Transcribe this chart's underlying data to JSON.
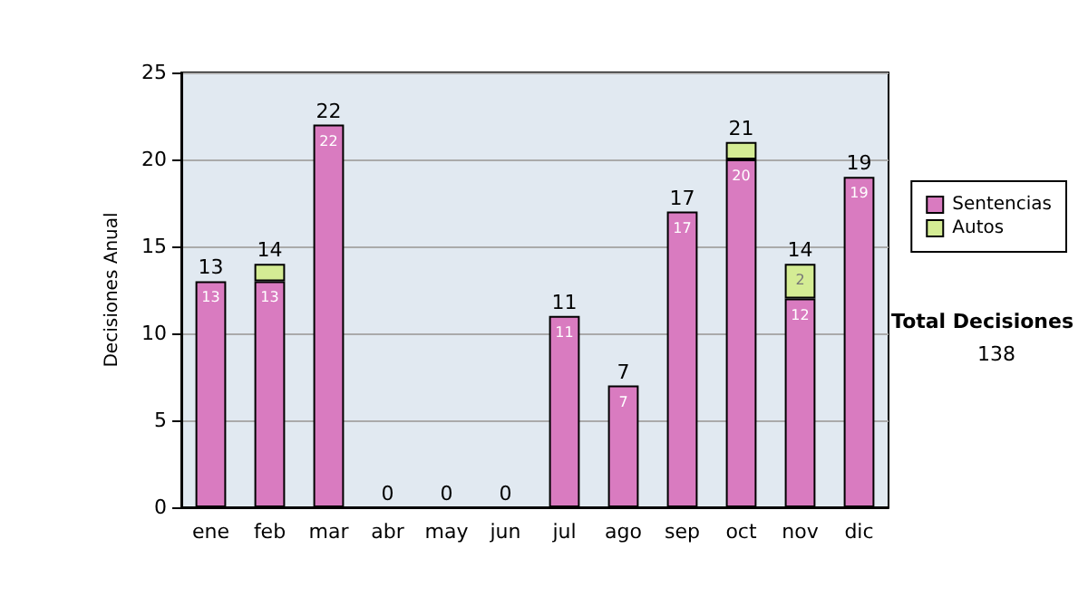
{
  "chart_data": {
    "type": "bar",
    "ylabel": "Decisiones Anual",
    "categories": [
      "ene",
      "feb",
      "mar",
      "abr",
      "may",
      "jun",
      "jul",
      "ago",
      "sep",
      "oct",
      "nov",
      "dic"
    ],
    "series": [
      {
        "name": "Sentencias",
        "color": "#d97bc0",
        "values": [
          13,
          13,
          22,
          0,
          0,
          0,
          11,
          7,
          17,
          20,
          12,
          19
        ],
        "value_labels": [
          "13",
          "13",
          "22",
          null,
          null,
          null,
          "11",
          "7",
          "17",
          "20",
          "12",
          "19"
        ]
      },
      {
        "name": "Autos",
        "color": "#d4ec94",
        "values": [
          0,
          1,
          0,
          0,
          0,
          0,
          0,
          0,
          0,
          1,
          2,
          0
        ],
        "value_labels": [
          null,
          null,
          null,
          null,
          null,
          null,
          null,
          null,
          null,
          null,
          "2",
          null
        ]
      }
    ],
    "stacked": true,
    "totals": [
      "13",
      "14",
      "22",
      "0",
      "0",
      "0",
      "11",
      "7",
      "17",
      "21",
      "14",
      "19"
    ],
    "ylim": [
      0,
      25
    ],
    "yticks": [
      0,
      5,
      10,
      15,
      20,
      25
    ],
    "grid": "y",
    "legend": "right",
    "annotations": [
      "Total Decisiones",
      "138"
    ]
  }
}
